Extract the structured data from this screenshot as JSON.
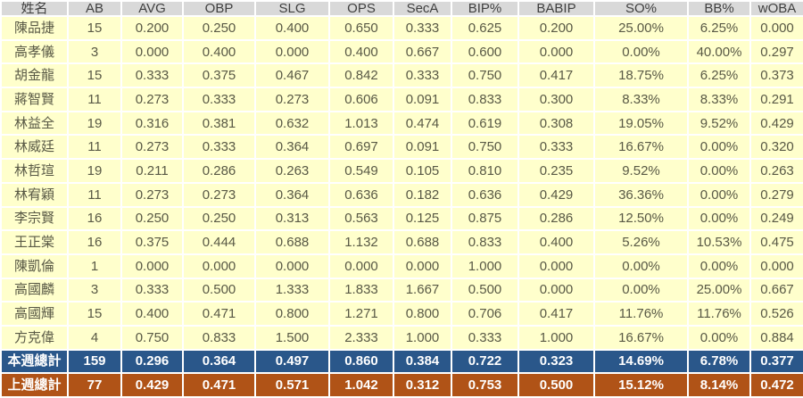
{
  "table": {
    "columns": [
      "姓名",
      "AB",
      "AVG",
      "OBP",
      "SLG",
      "OPS",
      "SecA",
      "BIP%",
      "BABIP",
      "SO%",
      "BB%",
      "wOBA"
    ],
    "players": [
      {
        "name": "陳品捷",
        "values": [
          "15",
          "0.200",
          "0.250",
          "0.400",
          "0.650",
          "0.333",
          "0.625",
          "0.200",
          "25.00%",
          "6.25%",
          "0.000"
        ]
      },
      {
        "name": "高孝儀",
        "values": [
          "3",
          "0.000",
          "0.400",
          "0.000",
          "0.400",
          "0.667",
          "0.600",
          "0.000",
          "0.00%",
          "40.00%",
          "0.297"
        ]
      },
      {
        "name": "胡金龍",
        "values": [
          "15",
          "0.333",
          "0.375",
          "0.467",
          "0.842",
          "0.333",
          "0.750",
          "0.417",
          "18.75%",
          "6.25%",
          "0.373"
        ]
      },
      {
        "name": "蔣智賢",
        "values": [
          "11",
          "0.273",
          "0.333",
          "0.273",
          "0.606",
          "0.091",
          "0.833",
          "0.300",
          "8.33%",
          "8.33%",
          "0.291"
        ]
      },
      {
        "name": "林益全",
        "values": [
          "19",
          "0.316",
          "0.381",
          "0.632",
          "1.013",
          "0.474",
          "0.619",
          "0.308",
          "19.05%",
          "9.52%",
          "0.429"
        ]
      },
      {
        "name": "林威廷",
        "values": [
          "11",
          "0.273",
          "0.333",
          "0.364",
          "0.697",
          "0.091",
          "0.750",
          "0.333",
          "16.67%",
          "0.00%",
          "0.320"
        ]
      },
      {
        "name": "林哲瑄",
        "values": [
          "19",
          "0.211",
          "0.286",
          "0.263",
          "0.549",
          "0.105",
          "0.810",
          "0.235",
          "9.52%",
          "0.00%",
          "0.263"
        ]
      },
      {
        "name": "林宥穎",
        "values": [
          "11",
          "0.273",
          "0.273",
          "0.364",
          "0.636",
          "0.182",
          "0.636",
          "0.429",
          "36.36%",
          "0.00%",
          "0.279"
        ]
      },
      {
        "name": "李宗賢",
        "values": [
          "16",
          "0.250",
          "0.250",
          "0.313",
          "0.563",
          "0.125",
          "0.875",
          "0.286",
          "12.50%",
          "0.00%",
          "0.249"
        ]
      },
      {
        "name": "王正棠",
        "values": [
          "16",
          "0.375",
          "0.444",
          "0.688",
          "1.132",
          "0.688",
          "0.833",
          "0.400",
          "5.26%",
          "10.53%",
          "0.475"
        ]
      },
      {
        "name": "陳凱倫",
        "values": [
          "1",
          "0.000",
          "0.000",
          "0.000",
          "0.000",
          "0.000",
          "1.000",
          "0.000",
          "0.00%",
          "0.00%",
          "0.000"
        ]
      },
      {
        "name": "高國麟",
        "values": [
          "3",
          "0.333",
          "0.500",
          "1.333",
          "1.833",
          "1.667",
          "0.500",
          "0.000",
          "0.00%",
          "25.00%",
          "0.667"
        ]
      },
      {
        "name": "高國輝",
        "values": [
          "15",
          "0.400",
          "0.471",
          "0.800",
          "1.271",
          "0.800",
          "0.706",
          "0.417",
          "11.76%",
          "11.76%",
          "0.526"
        ]
      },
      {
        "name": "方克偉",
        "values": [
          "4",
          "0.750",
          "0.833",
          "1.500",
          "2.333",
          "1.000",
          "0.333",
          "1.000",
          "16.67%",
          "0.00%",
          "0.884"
        ]
      }
    ],
    "totals": [
      {
        "label": "本週總計",
        "values": [
          "159",
          "0.296",
          "0.364",
          "0.497",
          "0.860",
          "0.384",
          "0.722",
          "0.323",
          "14.69%",
          "6.78%",
          "0.377"
        ]
      },
      {
        "label": "上週總計",
        "values": [
          "77",
          "0.429",
          "0.471",
          "0.571",
          "1.042",
          "0.312",
          "0.753",
          "0.500",
          "15.12%",
          "8.14%",
          "0.472"
        ]
      }
    ]
  },
  "colors": {
    "header_bg": "#D9D9D9",
    "header_text": "#404040",
    "row_bg": "#FFFFCC",
    "row_text": "#595945",
    "this_week_bg": "#2A578A",
    "last_week_bg": "#B05317",
    "total_text": "#FFFFFF",
    "border": "#FFFFFF"
  }
}
